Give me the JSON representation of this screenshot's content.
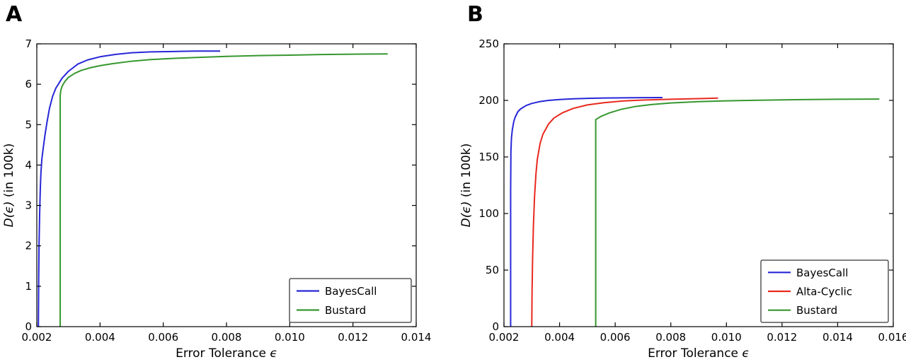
{
  "figure": {
    "background": "#ffffff",
    "axis_color": "#000000"
  },
  "chart_data": [
    {
      "type": "line",
      "panel_label": "A",
      "xlabel": "Error Tolerance ϵ",
      "ylabel": "D(ϵ) (in 100k)",
      "xlabel_parts": [
        {
          "text": "Error Tolerance ",
          "italic": false
        },
        {
          "text": "ϵ",
          "italic": true
        }
      ],
      "ylabel_parts": [
        {
          "text": "D(ϵ)",
          "italic": true
        },
        {
          "text": " (in 100k)",
          "italic": false
        }
      ],
      "xlim": [
        0.002,
        0.014
      ],
      "ylim": [
        0,
        7
      ],
      "xtick_values": [
        0.002,
        0.004,
        0.006,
        0.008,
        0.01,
        0.012,
        0.014
      ],
      "xtick_labels": [
        "0.002",
        "0.004",
        "0.006",
        "0.008",
        "0.010",
        "0.012",
        "0.014"
      ],
      "ytick_values": [
        0,
        1,
        2,
        3,
        4,
        5,
        6,
        7
      ],
      "ytick_labels": [
        "0",
        "1",
        "2",
        "3",
        "4",
        "5",
        "6",
        "7"
      ],
      "legend_position": "lower right",
      "series": [
        {
          "name": "BayesCall",
          "color": "#2727d8",
          "points": [
            [
              0.00205,
              0
            ],
            [
              0.00206,
              1.2
            ],
            [
              0.00207,
              2.0
            ],
            [
              0.00209,
              2.8
            ],
            [
              0.00211,
              3.4
            ],
            [
              0.00213,
              3.8
            ],
            [
              0.00216,
              4.15
            ],
            [
              0.0022,
              4.4
            ],
            [
              0.00226,
              4.75
            ],
            [
              0.00232,
              5.05
            ],
            [
              0.0024,
              5.4
            ],
            [
              0.0025,
              5.7
            ],
            [
              0.0026,
              5.9
            ],
            [
              0.0028,
              6.15
            ],
            [
              0.003,
              6.32
            ],
            [
              0.0033,
              6.5
            ],
            [
              0.0036,
              6.6
            ],
            [
              0.004,
              6.68
            ],
            [
              0.0045,
              6.74
            ],
            [
              0.005,
              6.78
            ],
            [
              0.0056,
              6.8
            ],
            [
              0.0063,
              6.81
            ],
            [
              0.007,
              6.82
            ],
            [
              0.0078,
              6.82
            ]
          ]
        },
        {
          "name": "Bustard",
          "color": "#36972f",
          "points": [
            [
              0.00274,
              0
            ],
            [
              0.00274,
              5.72
            ],
            [
              0.00276,
              5.85
            ],
            [
              0.0028,
              5.95
            ],
            [
              0.00285,
              6.02
            ],
            [
              0.0029,
              6.08
            ],
            [
              0.003,
              6.17
            ],
            [
              0.0032,
              6.27
            ],
            [
              0.0034,
              6.34
            ],
            [
              0.0037,
              6.41
            ],
            [
              0.004,
              6.46
            ],
            [
              0.0044,
              6.51
            ],
            [
              0.005,
              6.57
            ],
            [
              0.0056,
              6.61
            ],
            [
              0.0063,
              6.64
            ],
            [
              0.007,
              6.66
            ],
            [
              0.008,
              6.69
            ],
            [
              0.009,
              6.71
            ],
            [
              0.01,
              6.72
            ],
            [
              0.011,
              6.735
            ],
            [
              0.012,
              6.745
            ],
            [
              0.0131,
              6.75
            ]
          ]
        }
      ]
    },
    {
      "type": "line",
      "panel_label": "B",
      "xlabel": "Error Tolerance ϵ",
      "ylabel": "D(ϵ) (in 100k)",
      "xlabel_parts": [
        {
          "text": "Error Tolerance ",
          "italic": false
        },
        {
          "text": "ϵ",
          "italic": true
        }
      ],
      "ylabel_parts": [
        {
          "text": "D(ϵ)",
          "italic": true
        },
        {
          "text": " (in 100k)",
          "italic": false
        }
      ],
      "xlim": [
        0.002,
        0.016
      ],
      "ylim": [
        0,
        250
      ],
      "xtick_values": [
        0.002,
        0.004,
        0.006,
        0.008,
        0.01,
        0.012,
        0.014,
        0.016
      ],
      "xtick_labels": [
        "0.002",
        "0.004",
        "0.006",
        "0.008",
        "0.010",
        "0.012",
        "0.014",
        "0.016"
      ],
      "ytick_values": [
        0,
        50,
        100,
        150,
        200,
        250
      ],
      "ytick_labels": [
        "0",
        "50",
        "100",
        "150",
        "200",
        "250"
      ],
      "legend_position": "lower right",
      "series": [
        {
          "name": "BayesCall",
          "color": "#2727d8",
          "points": [
            [
              0.00224,
              0
            ],
            [
              0.00224,
              120
            ],
            [
              0.00225,
              155
            ],
            [
              0.00227,
              167
            ],
            [
              0.0023,
              174
            ],
            [
              0.00235,
              181
            ],
            [
              0.0024,
              185
            ],
            [
              0.0025,
              190
            ],
            [
              0.0026,
              192.5
            ],
            [
              0.0028,
              195.5
            ],
            [
              0.003,
              197.3
            ],
            [
              0.0033,
              199
            ],
            [
              0.0036,
              200
            ],
            [
              0.004,
              200.8
            ],
            [
              0.0045,
              201.4
            ],
            [
              0.005,
              201.8
            ],
            [
              0.0056,
              202.1
            ],
            [
              0.0063,
              202.3
            ],
            [
              0.007,
              202.4
            ],
            [
              0.0077,
              202.5
            ]
          ]
        },
        {
          "name": "Alta-Cyclic",
          "color": "#e8291e",
          "points": [
            [
              0.003,
              0
            ],
            [
              0.00301,
              30
            ],
            [
              0.00303,
              60
            ],
            [
              0.00306,
              90
            ],
            [
              0.0031,
              115
            ],
            [
              0.00315,
              135
            ],
            [
              0.0032,
              148
            ],
            [
              0.0033,
              162
            ],
            [
              0.0034,
              170
            ],
            [
              0.0036,
              179
            ],
            [
              0.0038,
              184.5
            ],
            [
              0.0041,
              189
            ],
            [
              0.0045,
              193
            ],
            [
              0.005,
              196
            ],
            [
              0.0056,
              198
            ],
            [
              0.0063,
              199.5
            ],
            [
              0.007,
              200.3
            ],
            [
              0.008,
              201
            ],
            [
              0.009,
              201.6
            ],
            [
              0.0097,
              202
            ]
          ]
        },
        {
          "name": "Bustard",
          "color": "#36972f",
          "points": [
            [
              0.0053,
              0
            ],
            [
              0.0053,
              183
            ],
            [
              0.0055,
              186
            ],
            [
              0.0058,
              189
            ],
            [
              0.0062,
              192
            ],
            [
              0.0067,
              194.5
            ],
            [
              0.0073,
              196.3
            ],
            [
              0.008,
              197.7
            ],
            [
              0.009,
              198.9
            ],
            [
              0.01,
              199.6
            ],
            [
              0.011,
              200.1
            ],
            [
              0.012,
              200.5
            ],
            [
              0.013,
              200.8
            ],
            [
              0.014,
              201
            ],
            [
              0.0155,
              201.2
            ]
          ]
        }
      ]
    }
  ]
}
